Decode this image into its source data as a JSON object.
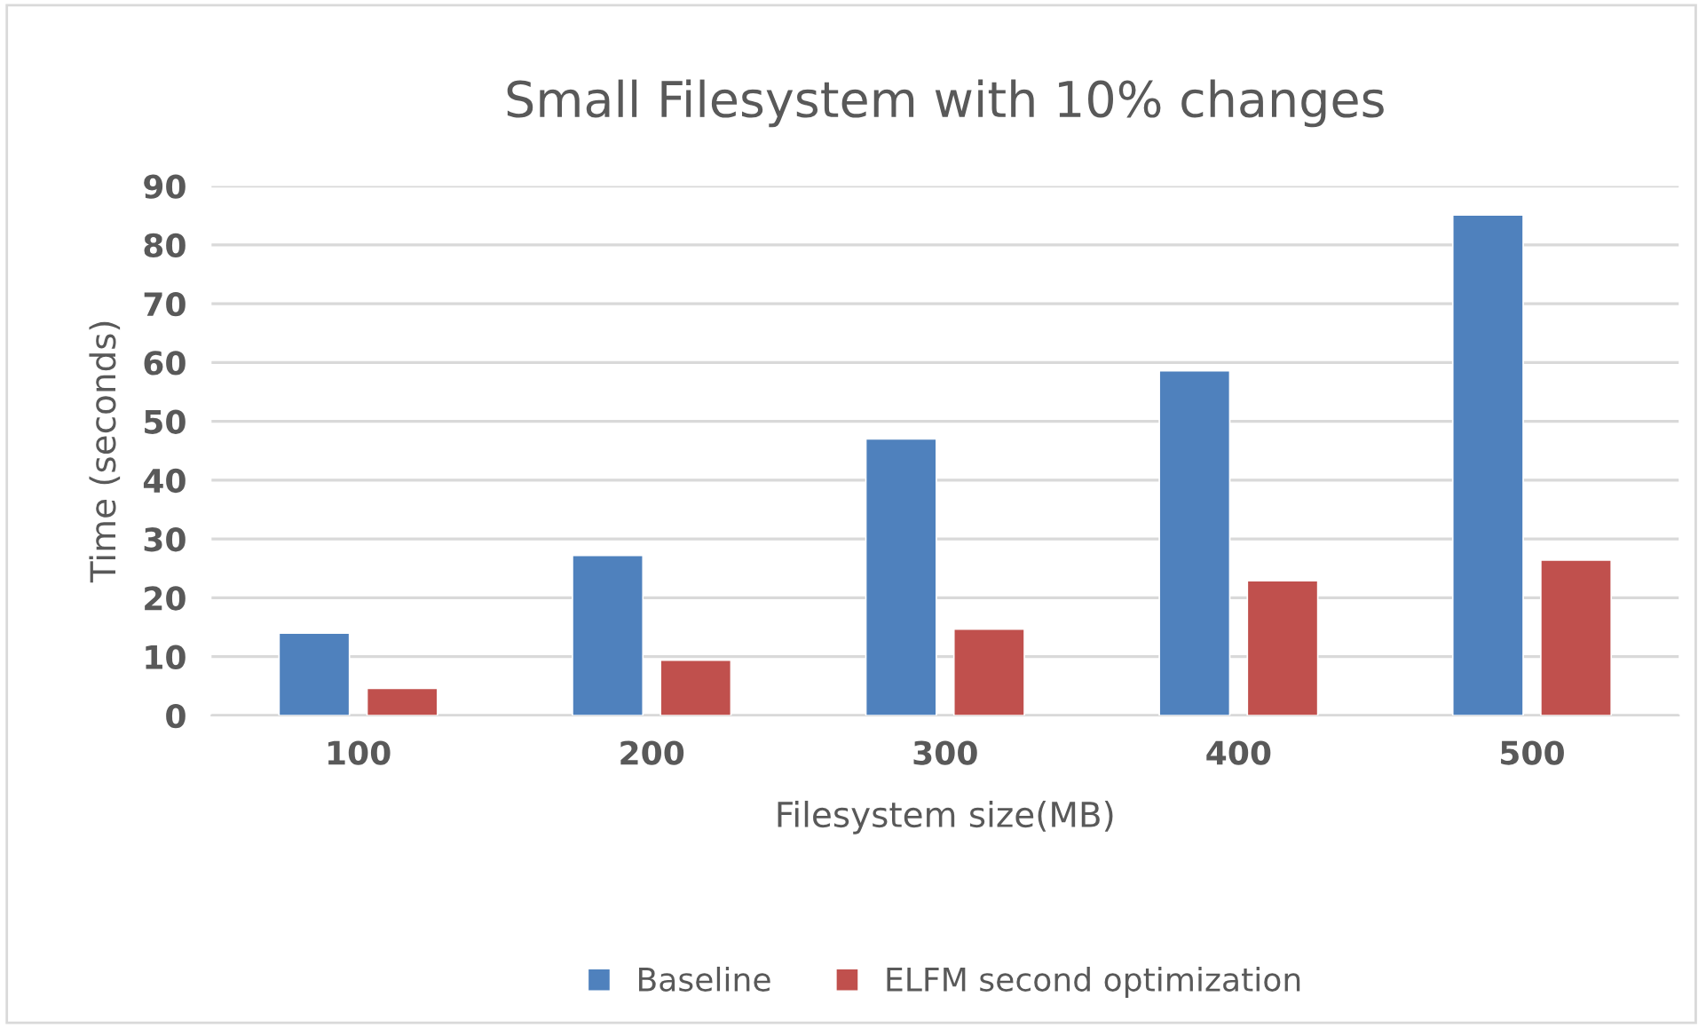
{
  "chart_data": {
    "type": "bar",
    "title": "Small Filesystem with 10% changes",
    "xlabel": "Filesystem size(MB)",
    "ylabel": "Time (seconds)",
    "categories": [
      "100",
      "200",
      "300",
      "400",
      "500"
    ],
    "series": [
      {
        "name": "Baseline",
        "color": "#4f81bd",
        "values": [
          14.0,
          27.2,
          47.0,
          58.6,
          85.1
        ]
      },
      {
        "name": "ELFM second optimization",
        "color": "#c0504d",
        "values": [
          4.6,
          9.4,
          14.7,
          22.9,
          26.4
        ]
      }
    ],
    "ylim": [
      0,
      90
    ],
    "yticks": [
      0,
      10,
      20,
      30,
      40,
      50,
      60,
      70,
      80,
      90
    ],
    "grid": "y",
    "legend": "bottom"
  }
}
